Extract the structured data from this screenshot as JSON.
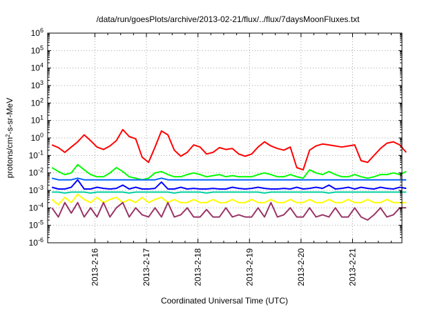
{
  "chart_data": {
    "type": "line",
    "title": "/data/run/goesPlots/archive/2013-02-21/flux/../flux/7daysMoonFluxes.txt",
    "xlabel": "Coordinated Universal Time (UTC)",
    "ylabel": {
      "prefix": "protons/cm",
      "sup": "2",
      "suffix": "-s-sr-MeV"
    },
    "yscale": "log",
    "ylim": [
      1e-06,
      1000000.0
    ],
    "xlim": [
      "2013-02-15 02:00",
      "2013-02-21 23:00"
    ],
    "grid": true,
    "x_ticks": [
      "2013-2-16",
      "2013-2-17",
      "2013-2-18",
      "2013-2-19",
      "2013-2-20",
      "2013-2-21"
    ],
    "y_ticks": [
      {
        "base": "10",
        "exp": "6"
      },
      {
        "base": "10",
        "exp": "5"
      },
      {
        "base": "10",
        "exp": "4"
      },
      {
        "base": "10",
        "exp": "3"
      },
      {
        "base": "10",
        "exp": "2"
      },
      {
        "base": "10",
        "exp": "1"
      },
      {
        "base": "10",
        "exp": "0"
      },
      {
        "base": "10",
        "exp": "-1"
      },
      {
        "base": "10",
        "exp": "-2"
      },
      {
        "base": "10",
        "exp": "-3"
      },
      {
        "base": "10",
        "exp": "-4"
      },
      {
        "base": "10",
        "exp": "-5"
      },
      {
        "base": "10",
        "exp": "-6"
      }
    ],
    "x_hours": [
      2,
      5,
      8,
      11,
      14,
      17,
      20,
      23,
      26,
      29,
      32,
      35,
      38,
      41,
      44,
      47,
      50,
      53,
      56,
      59,
      62,
      65,
      68,
      71,
      74,
      77,
      80,
      83,
      86,
      89,
      92,
      95,
      98,
      101,
      104,
      107,
      110,
      113,
      116,
      119,
      122,
      125,
      128,
      131,
      134,
      137,
      140,
      143,
      146,
      149,
      152,
      155,
      158,
      161,
      164,
      167
    ],
    "series": [
      {
        "color": "#ff0000",
        "values": [
          0.4,
          0.28,
          0.15,
          0.3,
          0.6,
          1.5,
          0.7,
          0.3,
          0.22,
          0.35,
          0.7,
          3,
          1.2,
          0.9,
          0.08,
          0.04,
          0.3,
          2.5,
          1.5,
          0.2,
          0.09,
          0.15,
          0.4,
          0.3,
          0.12,
          0.15,
          0.28,
          0.22,
          0.25,
          0.12,
          0.09,
          0.12,
          0.3,
          0.6,
          0.35,
          0.25,
          0.2,
          0.3,
          0.02,
          0.015,
          0.2,
          0.35,
          0.45,
          0.4,
          0.35,
          0.3,
          0.35,
          0.4,
          0.05,
          0.04,
          0.1,
          0.25,
          0.5,
          0.6,
          0.4,
          0.15
        ]
      },
      {
        "color": "#00ff00",
        "values": [
          0.02,
          0.012,
          0.008,
          0.01,
          0.03,
          0.015,
          0.008,
          0.006,
          0.006,
          0.01,
          0.02,
          0.012,
          0.006,
          0.005,
          0.004,
          0.005,
          0.01,
          0.012,
          0.008,
          0.006,
          0.006,
          0.008,
          0.01,
          0.008,
          0.006,
          0.007,
          0.008,
          0.006,
          0.007,
          0.006,
          0.006,
          0.006,
          0.008,
          0.01,
          0.008,
          0.006,
          0.006,
          0.008,
          0.006,
          0.005,
          0.015,
          0.01,
          0.008,
          0.012,
          0.008,
          0.006,
          0.006,
          0.008,
          0.006,
          0.005,
          0.006,
          0.008,
          0.008,
          0.01,
          0.008,
          0.012
        ]
      },
      {
        "color": "#0060ff",
        "values": [
          0.005,
          0.004,
          0.004,
          0.004,
          0.005,
          0.004,
          0.004,
          0.004,
          0.004,
          0.004,
          0.004,
          0.004,
          0.004,
          0.004,
          0.004,
          0.004,
          0.004,
          0.005,
          0.004,
          0.004,
          0.004,
          0.004,
          0.004,
          0.004,
          0.004,
          0.004,
          0.004,
          0.004,
          0.004,
          0.004,
          0.004,
          0.004,
          0.004,
          0.004,
          0.004,
          0.004,
          0.004,
          0.004,
          0.004,
          0.004,
          0.004,
          0.004,
          0.004,
          0.004,
          0.004,
          0.004,
          0.004,
          0.004,
          0.004,
          0.004,
          0.004,
          0.004,
          0.004,
          0.004,
          0.004,
          0.004
        ]
      },
      {
        "color": "#0000ff",
        "values": [
          0.0015,
          0.0012,
          0.0012,
          0.0015,
          0.004,
          0.0012,
          0.0012,
          0.0015,
          0.0013,
          0.0012,
          0.0013,
          0.002,
          0.0012,
          0.0015,
          0.0012,
          0.0012,
          0.0013,
          0.003,
          0.0012,
          0.0012,
          0.0015,
          0.0012,
          0.0013,
          0.0012,
          0.0012,
          0.0013,
          0.0012,
          0.0012,
          0.0015,
          0.0013,
          0.0012,
          0.0013,
          0.0015,
          0.0013,
          0.0012,
          0.0012,
          0.0013,
          0.0012,
          0.0015,
          0.0012,
          0.0013,
          0.0015,
          0.0013,
          0.002,
          0.0012,
          0.0013,
          0.0015,
          0.0012,
          0.0015,
          0.0013,
          0.0012,
          0.0015,
          0.0013,
          0.0012,
          0.0015,
          0.0013
        ]
      },
      {
        "color": "#00d0a0",
        "values": [
          0.0008,
          0.0008,
          0.0007,
          0.0008,
          0.0008,
          0.0008,
          0.0007,
          0.0008,
          0.0008,
          0.0008,
          0.0008,
          0.0008,
          0.0007,
          0.0008,
          0.0008,
          0.0008,
          0.0008,
          0.0008,
          0.0008,
          0.0007,
          0.0008,
          0.0008,
          0.0008,
          0.0008,
          0.0007,
          0.0008,
          0.0008,
          0.0008,
          0.0008,
          0.0008,
          0.0008,
          0.0008,
          0.0008,
          0.0007,
          0.0008,
          0.0008,
          0.0008,
          0.0008,
          0.0008,
          0.0008,
          0.0008,
          0.0008,
          0.0008,
          0.0007,
          0.0008,
          0.0008,
          0.0008,
          0.0008,
          0.0008,
          0.0008,
          0.0008,
          0.0008,
          0.0008,
          0.0008,
          0.0008,
          0.0008
        ]
      },
      {
        "color": "#ffff00",
        "values": [
          0.0003,
          0.00015,
          0.0004,
          0.0002,
          0.0006,
          0.0003,
          0.0002,
          0.0004,
          0.0002,
          0.0003,
          0.0004,
          0.0002,
          0.0003,
          0.0002,
          0.0004,
          0.0002,
          0.0003,
          0.0004,
          0.0002,
          0.0003,
          0.0002,
          0.0002,
          0.0003,
          0.0002,
          0.0002,
          0.0003,
          0.0002,
          0.0002,
          0.0003,
          0.0002,
          0.0002,
          0.0003,
          0.0002,
          0.0002,
          0.0003,
          0.0002,
          0.0002,
          0.0003,
          0.0002,
          0.0002,
          0.0003,
          0.0002,
          0.0002,
          0.0003,
          0.0002,
          0.0002,
          0.0003,
          0.0002,
          0.0002,
          0.0003,
          0.0002,
          0.0002,
          0.0003,
          0.0002,
          0.0002,
          0.0002
        ]
      },
      {
        "color": "#993366",
        "values": [
          0.0001,
          3e-05,
          0.0002,
          5e-05,
          0.0002,
          3e-05,
          0.0001,
          3e-05,
          0.0002,
          3e-05,
          0.0001,
          0.0002,
          3e-05,
          0.0001,
          4e-05,
          3e-05,
          0.0001,
          3e-05,
          0.0002,
          3e-05,
          4e-05,
          0.0001,
          3e-05,
          3e-05,
          8e-05,
          3e-05,
          3e-05,
          0.0001,
          3e-05,
          4e-05,
          3e-05,
          3e-05,
          0.0001,
          3e-05,
          0.0002,
          3e-05,
          4e-05,
          0.0001,
          3e-05,
          3e-05,
          0.0001,
          3e-05,
          4e-05,
          3e-05,
          0.0001,
          3e-05,
          3e-05,
          0.0001,
          3e-05,
          2e-05,
          4e-05,
          0.0001,
          3e-05,
          4e-05,
          0.0001,
          0.0001
        ]
      }
    ]
  }
}
